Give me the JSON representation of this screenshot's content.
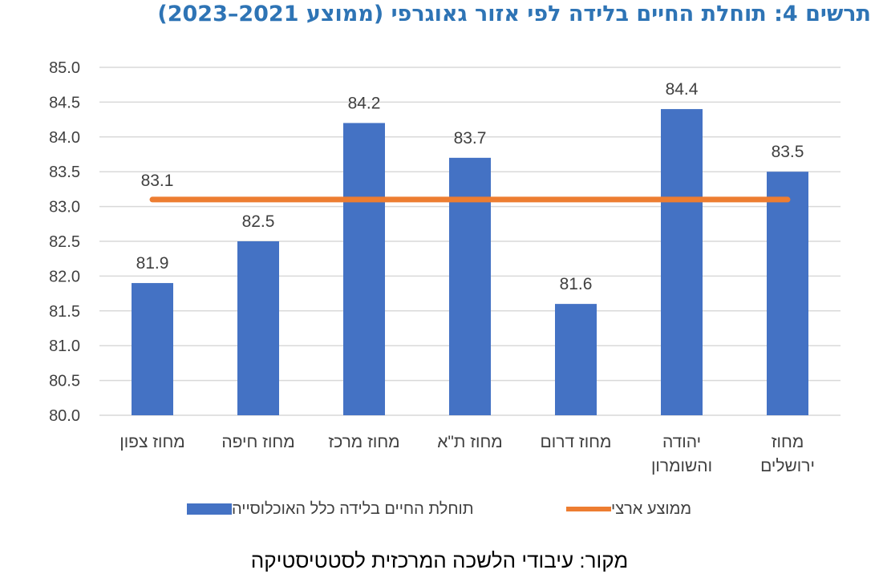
{
  "title": "תרשים 4: תוחלת החיים בלידה לפי אזור גאוגרפי (ממוצע 2021–2023)",
  "source": "מקור: עיבודי הלשכה המרכזית לסטטיסטיקה",
  "colors": {
    "title": "#2e74b5",
    "bars": "#4472c4",
    "average_line": "#ed7d31",
    "grid": "#d9d9d9",
    "text": "#404040"
  },
  "chart_data": {
    "type": "bar",
    "categories": [
      [
        "מחוז צפון"
      ],
      [
        "מחוז חיפה"
      ],
      [
        "מחוז מרכז"
      ],
      [
        "מחוז ת\"א"
      ],
      [
        "מחוז דרום"
      ],
      [
        "יהודה",
        "והשומרון"
      ],
      [
        "מחוז",
        "ירושלים"
      ]
    ],
    "series": [
      {
        "name": "תוחלת החיים בלידה כלל האוכלוסייה",
        "type": "bar",
        "values": [
          81.9,
          82.5,
          84.2,
          83.7,
          81.6,
          84.4,
          83.5
        ],
        "labels": [
          "81.9",
          "82.5",
          "84.2",
          "83.7",
          "81.6",
          "84.4",
          "83.5"
        ]
      },
      {
        "name": "ממוצע ארצי",
        "type": "line",
        "values": [
          83.1,
          83.1,
          83.1,
          83.1,
          83.1,
          83.1,
          83.1
        ],
        "label": "83.1"
      }
    ],
    "ylim": [
      80.0,
      85.0
    ],
    "yticks": [
      "80.0",
      "80.5",
      "81.0",
      "81.5",
      "82.0",
      "82.5",
      "83.0",
      "83.5",
      "84.0",
      "84.5",
      "85.0"
    ],
    "grid": true,
    "legend_position": "bottom"
  }
}
